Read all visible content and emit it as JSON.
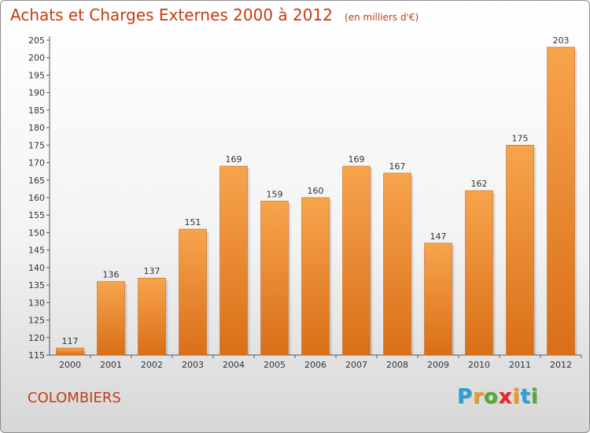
{
  "title": "Achats et Charges Externes 2000 à 2012",
  "subtitle": "(en milliers d'€)",
  "location": "COLOMBIERS",
  "brand": {
    "letters": [
      "P",
      "r",
      "o",
      "x",
      "i",
      "t",
      "i"
    ],
    "colors": [
      "#2aa0d8",
      "#f29a18",
      "#4caf2e",
      "#e8262a",
      "#f29a18",
      "#2aa0d8",
      "#4caf2e"
    ]
  },
  "colors": {
    "title": "#c43c16",
    "bar_top": "#f7a44d",
    "bar_bottom": "#d96f18"
  },
  "chart_data": {
    "type": "bar",
    "categories": [
      "2000",
      "2001",
      "2002",
      "2003",
      "2004",
      "2005",
      "2006",
      "2007",
      "2008",
      "2009",
      "2010",
      "2011",
      "2012"
    ],
    "values": [
      117,
      136,
      137,
      151,
      169,
      159,
      160,
      169,
      167,
      147,
      162,
      175,
      203
    ],
    "ylim": [
      115,
      205
    ],
    "yticks": [
      115,
      120,
      125,
      130,
      135,
      140,
      145,
      150,
      155,
      160,
      165,
      170,
      175,
      180,
      185,
      190,
      195,
      200,
      205
    ],
    "grid": false,
    "xlabel": "",
    "ylabel": ""
  }
}
